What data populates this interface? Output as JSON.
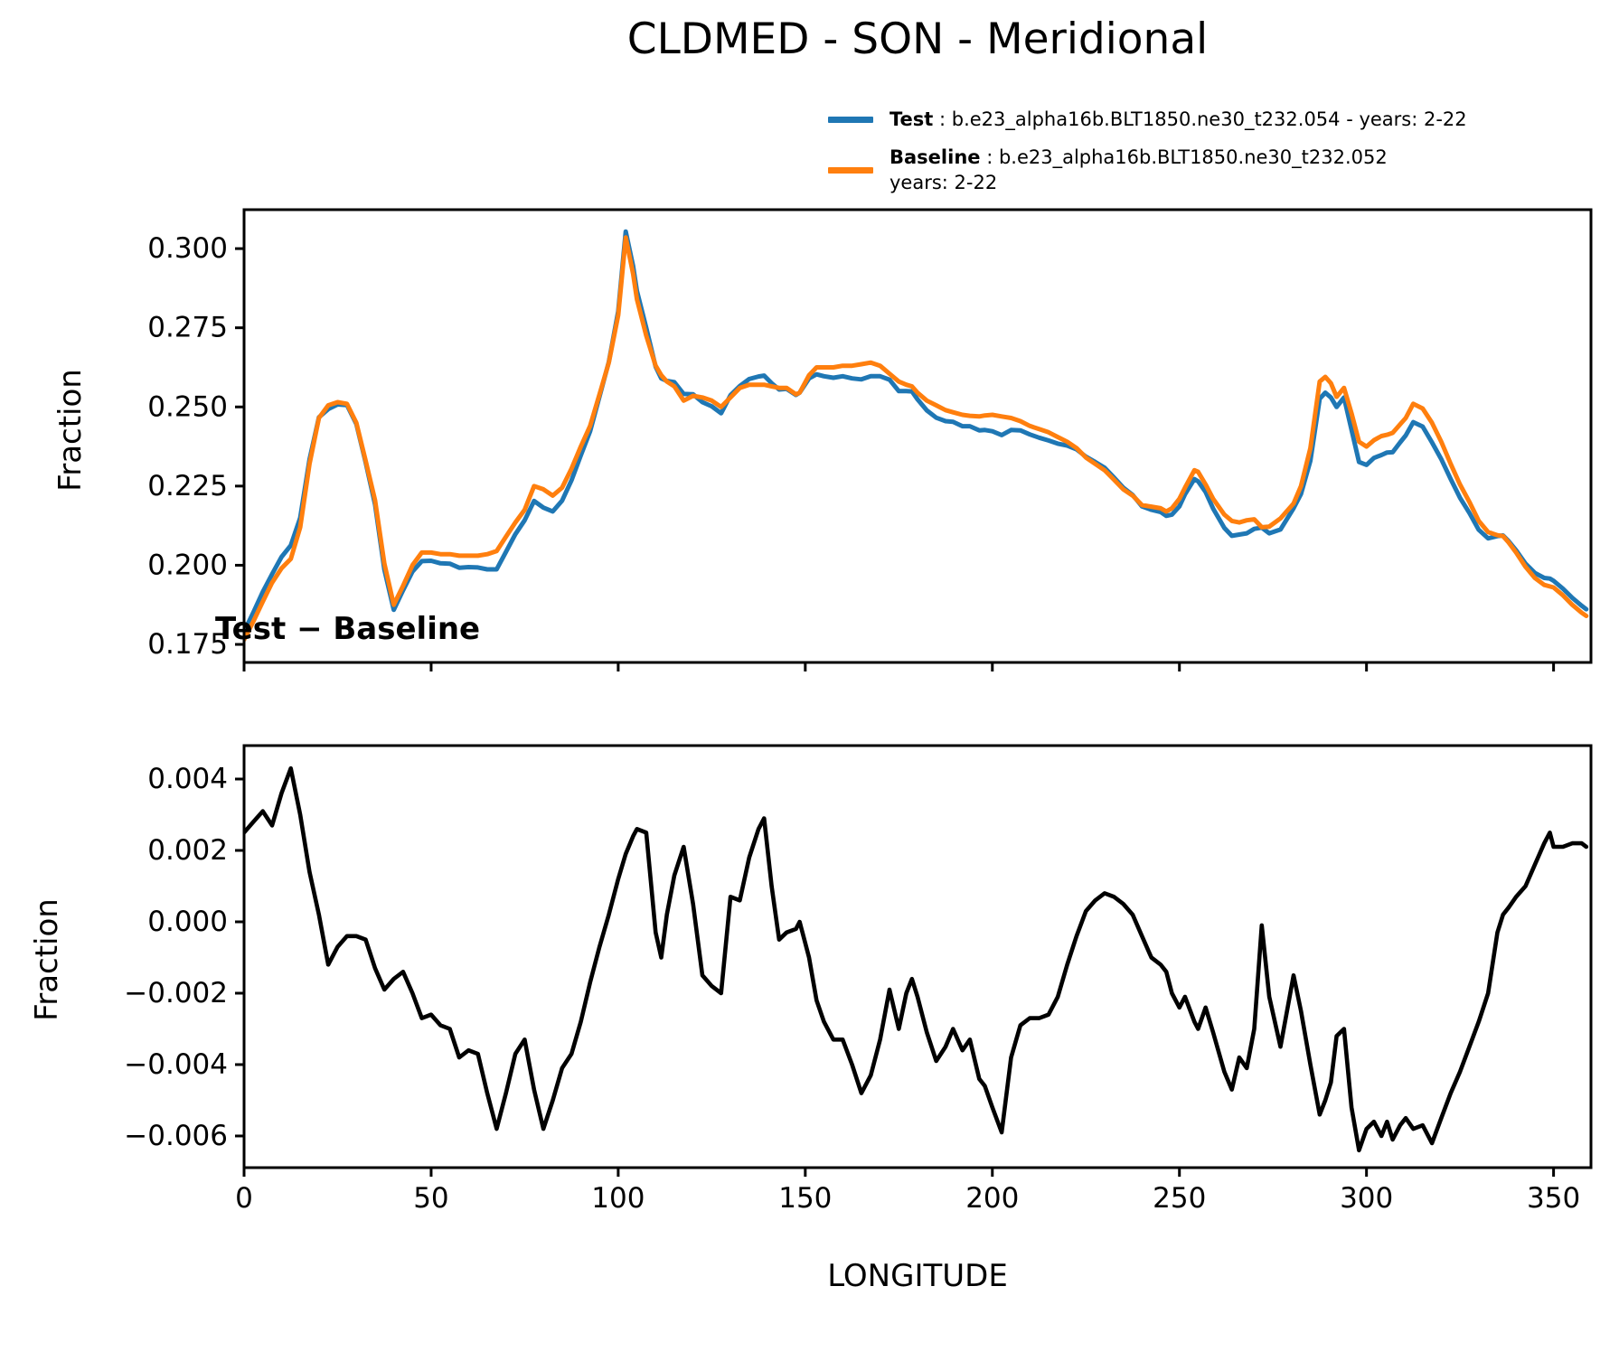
{
  "figure": {
    "background": "#ffffff",
    "spine_color": "#000000"
  },
  "legend": {
    "entries": [
      {
        "name": "Test",
        "rest": " : b.e23_alpha16b.BLT1850.ne30_t232.054 - years: 2-22",
        "rest2": "",
        "color": "#1f77b4"
      },
      {
        "name": "Baseline",
        "rest": " : b.e23_alpha16b.BLT1850.ne30_t232.052",
        "rest2": "years: 2-22",
        "color": "#ff7f0e"
      }
    ]
  },
  "chart_data": [
    {
      "type": "line",
      "title": "CLDMED - SON - Meridional",
      "xlabel": "",
      "ylabel": "Fraction",
      "xlim": [
        0,
        360
      ],
      "ylim": [
        0.1693,
        0.3123
      ],
      "grid": false,
      "legend_position": "upper right (above axes)",
      "xticks": [
        0,
        50,
        100,
        150,
        200,
        250,
        300,
        350
      ],
      "xtick_labels": [
        "",
        "",
        "",
        "",
        "",
        "",
        "",
        ""
      ],
      "yticks": [
        0.175,
        0.2,
        0.225,
        0.25,
        0.275,
        0.3
      ],
      "ytick_labels": [
        "0.175",
        "0.200",
        "0.225",
        "0.250",
        "0.275",
        "0.300"
      ],
      "x": [
        0,
        2.5,
        5,
        7.5,
        10,
        12.5,
        15,
        17.5,
        20,
        22.5,
        25,
        27.5,
        30,
        32.5,
        35,
        37.5,
        40,
        42.5,
        45,
        47.5,
        50,
        52.5,
        55,
        57.5,
        60,
        62.5,
        65,
        67.5,
        70,
        72.5,
        75,
        77.5,
        80,
        82.5,
        85,
        87.5,
        90,
        92.5,
        95,
        97.5,
        100,
        102,
        104,
        105,
        107.5,
        110,
        111.5,
        113,
        115,
        117.5,
        120,
        122.5,
        125,
        127.5,
        130,
        132.5,
        135,
        137.5,
        139,
        141,
        143,
        145,
        147.5,
        148.5,
        151,
        153,
        155,
        157.5,
        160,
        162.5,
        165,
        167.5,
        170,
        172.5,
        175,
        177,
        178.5,
        180,
        182.5,
        185,
        187.5,
        189.5,
        192,
        194,
        196.5,
        198,
        200,
        202.5,
        205,
        207.5,
        210,
        212.5,
        215,
        217.5,
        220,
        222.5,
        225,
        227.5,
        230,
        232.5,
        235,
        237.5,
        240,
        242.5,
        245,
        246.5,
        248,
        250,
        251.5,
        254,
        255,
        257,
        259,
        262,
        264,
        266,
        268,
        270,
        272,
        274,
        277,
        280.5,
        282.5,
        285,
        287.5,
        289,
        290.5,
        292,
        294,
        296,
        298,
        300,
        302,
        304,
        305.5,
        307,
        309,
        310.5,
        312.5,
        315,
        317.5,
        320,
        322.5,
        325,
        327.5,
        330,
        332.5,
        335,
        336.5,
        338,
        340,
        342.5,
        345,
        347.5,
        349,
        350,
        352.5,
        355,
        357.5,
        358.75
      ],
      "series": [
        {
          "name": "Test",
          "color": "#1f77b4",
          "linewidth": 5,
          "values": [
            0.179,
            0.1851,
            0.1916,
            0.1972,
            0.2026,
            0.2063,
            0.215,
            0.2334,
            0.2467,
            0.2493,
            0.2508,
            0.2506,
            0.2446,
            0.2325,
            0.2192,
            0.1986,
            0.1859,
            0.1921,
            0.198,
            0.2013,
            0.2014,
            0.2006,
            0.2005,
            0.1992,
            0.1994,
            0.1993,
            0.1987,
            0.1987,
            0.2042,
            0.2098,
            0.2142,
            0.2203,
            0.2182,
            0.217,
            0.2204,
            0.2268,
            0.2347,
            0.2423,
            0.2533,
            0.2642,
            0.2802,
            0.3054,
            0.2944,
            0.2866,
            0.275,
            0.2627,
            0.259,
            0.2582,
            0.2578,
            0.2541,
            0.254,
            0.2515,
            0.2502,
            0.248,
            0.2537,
            0.2566,
            0.2588,
            0.2596,
            0.2599,
            0.2575,
            0.2555,
            0.2557,
            0.2538,
            0.2545,
            0.259,
            0.2603,
            0.2597,
            0.2592,
            0.2597,
            0.259,
            0.2587,
            0.2597,
            0.2597,
            0.2586,
            0.255,
            0.255,
            0.2549,
            0.2524,
            0.2489,
            0.2466,
            0.2455,
            0.2453,
            0.2439,
            0.2439,
            0.2426,
            0.2427,
            0.2423,
            0.2411,
            0.2427,
            0.2426,
            0.2413,
            0.2403,
            0.2394,
            0.2384,
            0.2378,
            0.2366,
            0.2343,
            0.2326,
            0.2308,
            0.2277,
            0.2245,
            0.2222,
            0.2186,
            0.2175,
            0.2168,
            0.2156,
            0.216,
            0.2186,
            0.2224,
            0.2272,
            0.2265,
            0.2231,
            0.2179,
            0.2118,
            0.2093,
            0.2097,
            0.2101,
            0.2115,
            0.2119,
            0.2101,
            0.2113,
            0.218,
            0.2225,
            0.233,
            0.2526,
            0.2545,
            0.253,
            0.25,
            0.253,
            0.2428,
            0.2326,
            0.2317,
            0.2339,
            0.2348,
            0.2356,
            0.2357,
            0.2388,
            0.241,
            0.2452,
            0.2438,
            0.2388,
            0.2335,
            0.2272,
            0.2213,
            0.2165,
            0.2112,
            0.2085,
            0.2092,
            0.2094,
            0.2076,
            0.2047,
            0.2005,
            0.1976,
            0.196,
            0.1958,
            0.1951,
            0.1926,
            0.1897,
            0.1872,
            0.1861
          ]
        },
        {
          "name": "Baseline",
          "color": "#ff7f0e",
          "linewidth": 5,
          "values": [
            0.1765,
            0.1823,
            0.1885,
            0.1945,
            0.199,
            0.202,
            0.212,
            0.232,
            0.2465,
            0.2505,
            0.2515,
            0.251,
            0.245,
            0.233,
            0.2205,
            0.2005,
            0.1875,
            0.1935,
            0.2,
            0.204,
            0.204,
            0.2035,
            0.2035,
            0.203,
            0.203,
            0.203,
            0.2035,
            0.2045,
            0.209,
            0.2135,
            0.2175,
            0.225,
            0.224,
            0.222,
            0.2245,
            0.2305,
            0.2375,
            0.244,
            0.254,
            0.264,
            0.279,
            0.3035,
            0.292,
            0.284,
            0.2725,
            0.263,
            0.26,
            0.258,
            0.2565,
            0.252,
            0.2535,
            0.253,
            0.252,
            0.25,
            0.253,
            0.256,
            0.257,
            0.257,
            0.257,
            0.2565,
            0.256,
            0.256,
            0.254,
            0.2545,
            0.26,
            0.2625,
            0.2625,
            0.2625,
            0.263,
            0.263,
            0.2635,
            0.264,
            0.263,
            0.2605,
            0.258,
            0.257,
            0.2565,
            0.2545,
            0.252,
            0.2505,
            0.249,
            0.2483,
            0.2475,
            0.2472,
            0.247,
            0.2473,
            0.2475,
            0.247,
            0.2465,
            0.2455,
            0.244,
            0.243,
            0.242,
            0.2405,
            0.239,
            0.237,
            0.234,
            0.232,
            0.23,
            0.227,
            0.224,
            0.222,
            0.219,
            0.2185,
            0.218,
            0.217,
            0.218,
            0.221,
            0.2245,
            0.23,
            0.2295,
            0.2255,
            0.221,
            0.216,
            0.214,
            0.2135,
            0.2142,
            0.2145,
            0.212,
            0.2122,
            0.2148,
            0.2195,
            0.225,
            0.237,
            0.258,
            0.2595,
            0.2575,
            0.2532,
            0.256,
            0.248,
            0.239,
            0.2375,
            0.2395,
            0.2408,
            0.2412,
            0.2418,
            0.2445,
            0.2465,
            0.251,
            0.2495,
            0.245,
            0.239,
            0.232,
            0.2255,
            0.22,
            0.214,
            0.2105,
            0.2095,
            0.2092,
            0.2072,
            0.204,
            0.1995,
            0.196,
            0.1938,
            0.1933,
            0.193,
            0.1905,
            0.1875,
            0.185,
            0.184
          ]
        }
      ]
    },
    {
      "type": "line",
      "title": "Test − Baseline",
      "xlabel": "LONGITUDE",
      "ylabel": "Fraction",
      "xlim": [
        0,
        360
      ],
      "ylim": [
        -0.006887,
        0.004937
      ],
      "grid": false,
      "xticks": [
        0,
        50,
        100,
        150,
        200,
        250,
        300,
        350
      ],
      "xtick_labels": [
        "0",
        "50",
        "100",
        "150",
        "200",
        "250",
        "300",
        "350"
      ],
      "yticks": [
        -0.006,
        -0.004,
        -0.002,
        0.0,
        0.002,
        0.004
      ],
      "ytick_labels": [
        "−0.006",
        "−0.004",
        "−0.002",
        "0.000",
        "0.002",
        "0.004"
      ],
      "series": [
        {
          "name": "Test − Baseline",
          "color": "#000000",
          "linewidth": 4.6,
          "values": [
            0.0025,
            0.0028,
            0.0031,
            0.0027,
            0.0036,
            0.0043,
            0.003,
            0.0014,
            0.0002,
            -0.0012,
            -0.0007,
            -0.0004,
            -0.0004,
            -0.0005,
            -0.0013,
            -0.0019,
            -0.0016,
            -0.0014,
            -0.002,
            -0.0027,
            -0.0026,
            -0.0029,
            -0.003,
            -0.0038,
            -0.0036,
            -0.0037,
            -0.0048,
            -0.0058,
            -0.0048,
            -0.0037,
            -0.0033,
            -0.0047,
            -0.0058,
            -0.005,
            -0.0041,
            -0.0037,
            -0.0028,
            -0.0017,
            -0.0007,
            0.0002,
            0.0012,
            0.0019,
            0.0024,
            0.0026,
            0.0025,
            -0.0003,
            -0.001,
            0.0002,
            0.0013,
            0.0021,
            0.0005,
            -0.0015,
            -0.0018,
            -0.002,
            0.0007,
            0.0006,
            0.0018,
            0.0026,
            0.0029,
            0.001,
            -0.0005,
            -0.0003,
            -0.0002,
            0.0,
            -0.001,
            -0.0022,
            -0.0028,
            -0.0033,
            -0.0033,
            -0.004,
            -0.0048,
            -0.0043,
            -0.0033,
            -0.0019,
            -0.003,
            -0.002,
            -0.0016,
            -0.0021,
            -0.0031,
            -0.0039,
            -0.0035,
            -0.003,
            -0.0036,
            -0.0033,
            -0.0044,
            -0.0046,
            -0.0052,
            -0.0059,
            -0.0038,
            -0.0029,
            -0.0027,
            -0.0027,
            -0.0026,
            -0.0021,
            -0.0012,
            -0.0004,
            0.0003,
            0.0006,
            0.0008,
            0.0007,
            0.0005,
            0.0002,
            -0.0004,
            -0.001,
            -0.0012,
            -0.0014,
            -0.002,
            -0.0024,
            -0.0021,
            -0.0028,
            -0.003,
            -0.0024,
            -0.0031,
            -0.0042,
            -0.0047,
            -0.0038,
            -0.0041,
            -0.003,
            -0.0001,
            -0.0021,
            -0.0035,
            -0.0015,
            -0.0025,
            -0.004,
            -0.0054,
            -0.005,
            -0.0045,
            -0.0032,
            -0.003,
            -0.0052,
            -0.0064,
            -0.0058,
            -0.0056,
            -0.006,
            -0.0056,
            -0.0061,
            -0.0057,
            -0.0055,
            -0.0058,
            -0.0057,
            -0.0062,
            -0.0055,
            -0.0048,
            -0.0042,
            -0.0035,
            -0.0028,
            -0.002,
            -0.0003,
            0.0002,
            0.0004,
            0.0007,
            0.001,
            0.0016,
            0.0022,
            0.0025,
            0.0021,
            0.0021,
            0.0022,
            0.0022,
            0.0021
          ]
        }
      ]
    }
  ]
}
